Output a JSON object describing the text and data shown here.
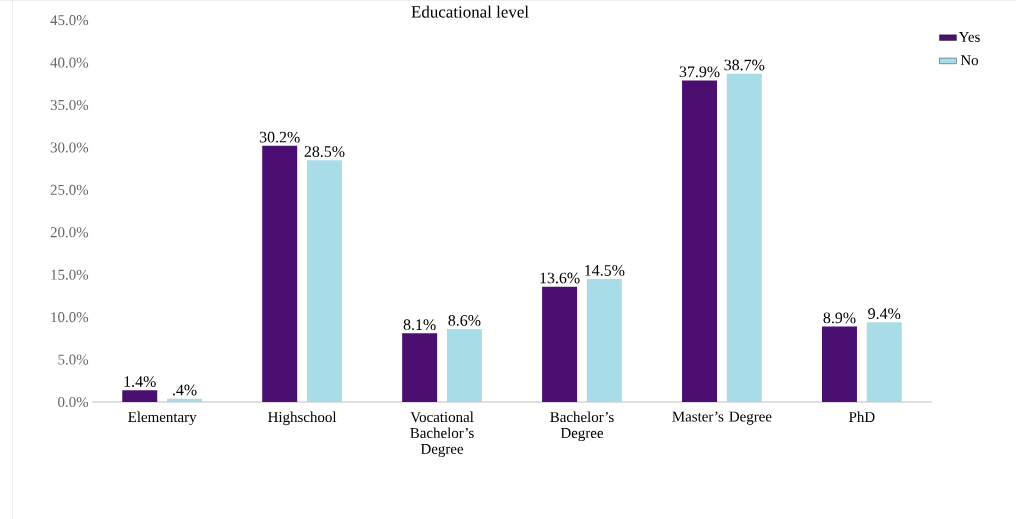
{
  "chart_data": {
    "type": "bar",
    "title": "Educational level",
    "categories": [
      "Elementary",
      "Highschool",
      "Vocational Bachelor’s Degree",
      "Bachelor’s Degree",
      "Master’s Degree",
      "PhD"
    ],
    "series": [
      {
        "name": "Yes",
        "color": "#4b0f72",
        "values": [
          1.4,
          30.2,
          8.1,
          13.6,
          37.9,
          8.9
        ],
        "value_labels": [
          "1.4%",
          "30.2%",
          "8.1%",
          "13.6%",
          "37.9%",
          "8.9%"
        ]
      },
      {
        "name": "No",
        "color": "#a8dde8",
        "values": [
          0.4,
          28.5,
          8.6,
          14.5,
          38.7,
          9.4
        ],
        "value_labels": [
          ".4%",
          "28.5%",
          "8.6%",
          "14.5%",
          "38.7%",
          "9.4%"
        ]
      }
    ],
    "ylim": [
      0,
      45
    ],
    "yticks": [
      {
        "value": 0,
        "label": "0.0%"
      },
      {
        "value": 5,
        "label": "5.0%"
      },
      {
        "value": 10,
        "label": "10.0%"
      },
      {
        "value": 15,
        "label": "15.0%"
      },
      {
        "value": 20,
        "label": "20.0%"
      },
      {
        "value": 25,
        "label": "25.0%"
      },
      {
        "value": 30,
        "label": "30.0%"
      },
      {
        "value": 35,
        "label": "35.0%"
      },
      {
        "value": 40,
        "label": "40.0%"
      },
      {
        "value": 45,
        "label": "45.0%"
      }
    ],
    "legend": "right",
    "grid": false
  }
}
